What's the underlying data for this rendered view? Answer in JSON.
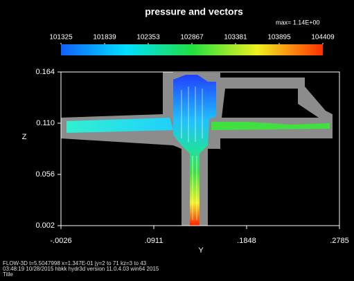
{
  "chart_data": {
    "type": "contour",
    "title": "pressure and vectors",
    "annotation": "max= 1.14E+00",
    "x_label": "Y",
    "y_label": "Z",
    "xlim": [
      -0.0026,
      0.2785
    ],
    "xticks": [
      {
        "value": -0.0026,
        "label": "-.0026"
      },
      {
        "value": 0.0911,
        "label": ".0911"
      },
      {
        "value": 0.1848,
        "label": ".1848"
      },
      {
        "value": 0.2785,
        "label": ".2785"
      }
    ],
    "ylim": [
      0.002,
      0.164
    ],
    "yticks": [
      0.002,
      0.056,
      {
        "value": 0.11,
        "label": "0.110"
      },
      0.164
    ],
    "colorbar_lim": [
      101325,
      104409
    ],
    "colorbar_ticks": [
      101325,
      101839,
      102353,
      102867,
      103381,
      103895,
      104409
    ],
    "footer": [
      "FLOW-3D  t=5.5047998  x=1.347E-01  jy=2 to 71  kz=3 to 43",
      "03:48:19  10/28/2015 hbkk      hydr3d  version  11.0.4.03  win64 2015",
      "Title"
    ]
  }
}
